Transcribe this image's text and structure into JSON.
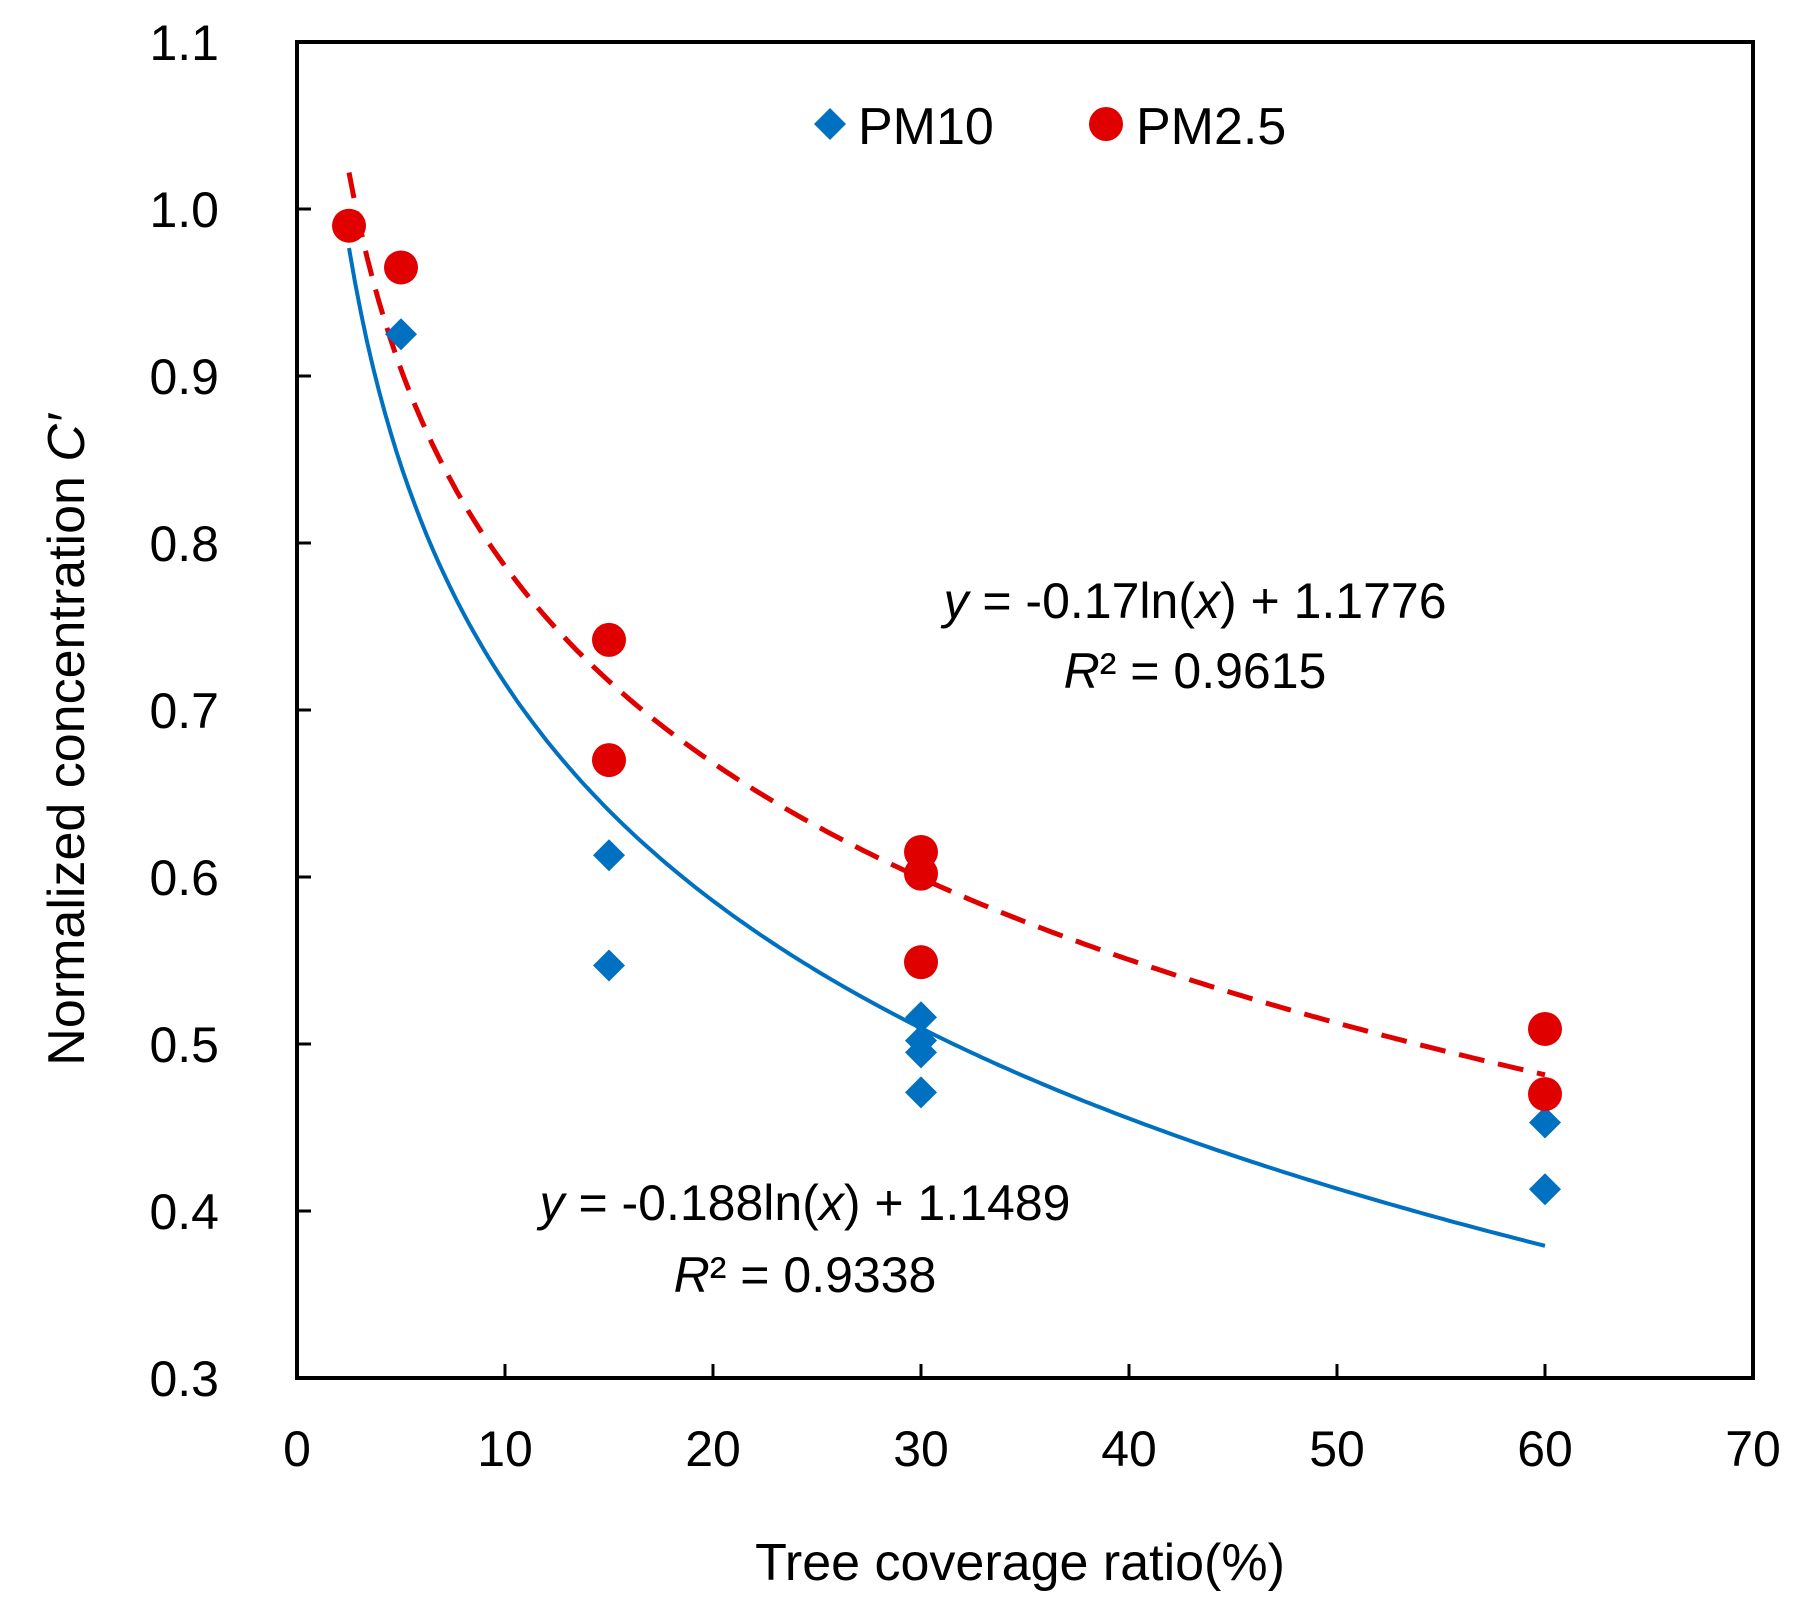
{
  "chart_data": {
    "type": "scatter",
    "xlabel": "Tree coverage ratio(%)",
    "ylabel_main": "Normalized concentration ",
    "ylabel_italic": "C′",
    "xlim": [
      0,
      70
    ],
    "ylim": [
      0.3,
      1.1
    ],
    "x_ticks": [
      0,
      10,
      20,
      30,
      40,
      50,
      60,
      70
    ],
    "x_tick_labels": [
      "0",
      "10",
      "20",
      "30",
      "40",
      "50",
      "60",
      "70"
    ],
    "y_ticks": [
      0.3,
      0.4,
      0.5,
      0.6,
      0.7,
      0.8,
      0.9,
      1.0,
      1.1
    ],
    "y_tick_labels": [
      "0.3",
      "0.4",
      "0.5",
      "0.6",
      "0.7",
      "0.8",
      "0.9",
      "1.0",
      "1.1"
    ],
    "grid": false,
    "legend_position": "top-center",
    "series": [
      {
        "name": "PM10",
        "marker": "diamond",
        "color": "#0070C0",
        "points": [
          {
            "x": 2.5,
            "y": 0.99
          },
          {
            "x": 5,
            "y": 0.925
          },
          {
            "x": 15,
            "y": 0.613
          },
          {
            "x": 15,
            "y": 0.547
          },
          {
            "x": 30,
            "y": 0.516
          },
          {
            "x": 30,
            "y": 0.502
          },
          {
            "x": 30,
            "y": 0.495
          },
          {
            "x": 30,
            "y": 0.471
          },
          {
            "x": 60,
            "y": 0.453
          },
          {
            "x": 60,
            "y": 0.413
          }
        ],
        "trendline": {
          "type": "logarithmic",
          "a": -0.188,
          "b": 1.1489,
          "x_range": [
            2.5,
            60
          ],
          "line_style": "solid",
          "color": "#0070C0",
          "equation": {
            "y": "y",
            "rest": " = -0.188ln(",
            "x": "x",
            "end": ") + 1.1489"
          },
          "r2": {
            "r": "R",
            "rest": "² = 0.9338"
          }
        }
      },
      {
        "name": "PM2.5",
        "marker": "circle",
        "color": "#E00000",
        "points": [
          {
            "x": 2.5,
            "y": 0.99
          },
          {
            "x": 5,
            "y": 0.965
          },
          {
            "x": 15,
            "y": 0.742
          },
          {
            "x": 15,
            "y": 0.67
          },
          {
            "x": 30,
            "y": 0.615
          },
          {
            "x": 30,
            "y": 0.602
          },
          {
            "x": 30,
            "y": 0.549
          },
          {
            "x": 60,
            "y": 0.509
          },
          {
            "x": 60,
            "y": 0.47
          }
        ],
        "trendline": {
          "type": "logarithmic",
          "a": -0.17,
          "b": 1.1776,
          "x_range": [
            2.5,
            60
          ],
          "line_style": "dashed",
          "color": "#E00000",
          "equation": {
            "y": "y",
            "rest": " = -0.17ln(",
            "x": "x",
            "end": ") + 1.1776"
          },
          "r2": {
            "r": "R",
            "rest": "² = 0.9615"
          }
        }
      }
    ]
  }
}
